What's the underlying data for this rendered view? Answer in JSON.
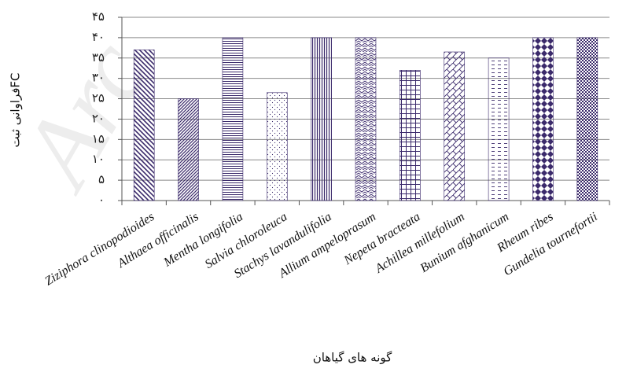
{
  "chart_data": {
    "type": "bar",
    "watermark": "Arc",
    "y_label": "فراوانی ثبتFC",
    "x_label": "گونه های گیاهان",
    "categories": [
      "Ziziphora clinopodioides",
      "Althaea officinalis",
      "Mentha longifolia",
      "Salvia chloroleuca",
      "Stachys lavandulifolia",
      "Allium ampeloprasum",
      "Nepeta bracteata",
      "Achillea millefolium",
      "Bunium afghanicum",
      "Rheum ribes",
      "Gundelia tournefortii"
    ],
    "values": [
      37,
      25,
      40,
      26.5,
      40,
      40,
      32,
      36.5,
      35,
      40,
      40
    ],
    "color": "#3b2a6b",
    "ylim": [
      0,
      45
    ],
    "yticks": [
      {
        "value": 0,
        "label": "۰"
      },
      {
        "value": 5,
        "label": "۵"
      },
      {
        "value": 10,
        "label": "۱۰"
      },
      {
        "value": 15,
        "label": "۱۵"
      },
      {
        "value": 20,
        "label": "۲۰"
      },
      {
        "value": 25,
        "label": "۲۵"
      },
      {
        "value": 30,
        "label": "۳۰"
      },
      {
        "value": 35,
        "label": "۳۵"
      },
      {
        "value": 40,
        "label": "۴۰"
      },
      {
        "value": 45,
        "label": "۴۵"
      }
    ],
    "grid": true
  }
}
